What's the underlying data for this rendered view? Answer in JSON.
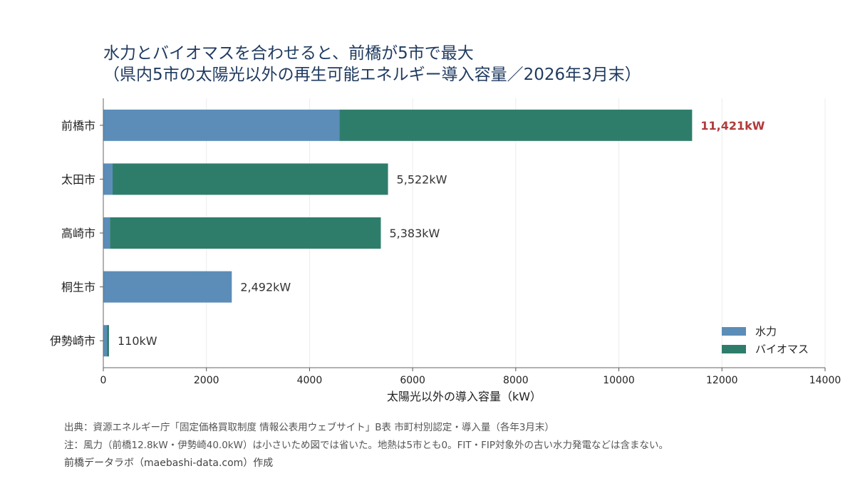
{
  "chart_data": {
    "type": "bar",
    "orientation": "horizontal",
    "stacked": true,
    "title": "水力とバイオマスを合わせると、前橋が5市で最大",
    "subtitle": "（県内5市の太陽光以外の再生可能エネルギー導入容量／2026年3月末）",
    "categories": [
      "前橋市",
      "太田市",
      "高崎市",
      "桐生市",
      "伊勢崎市"
    ],
    "series": [
      {
        "name": "水力",
        "color": "#5b8db8",
        "values": [
          4580,
          180,
          130,
          2492,
          70
        ]
      },
      {
        "name": "バイオマス",
        "color": "#2e7d6b",
        "values": [
          6841,
          5342,
          5253,
          0,
          40
        ]
      }
    ],
    "total_labels": [
      "11,421kW",
      "5,522kW",
      "5,383kW",
      "2,492kW",
      "110kW"
    ],
    "label_positions": [
      11421,
      5522,
      5383,
      2492,
      110
    ],
    "highlight_index": 0,
    "highlight_color": "#b03a3a",
    "xlabel": "太陽光以外の導入容量（kW）",
    "xlim": [
      0,
      14000
    ],
    "xticks": [
      0,
      2000,
      4000,
      6000,
      8000,
      10000,
      12000,
      14000
    ],
    "xtick_labels": [
      "0",
      "2000",
      "4000",
      "6000",
      "8000",
      "10000",
      "12000",
      "14000"
    ],
    "grid": "x",
    "legend_placement": "bottom-right"
  },
  "footnotes": {
    "source": "出典：資源エネルギー庁「固定価格買取制度 情報公表用ウェブサイト」B表 市町村別認定・導入量（各年3月末）",
    "note": "注：風力（前橋12.8kW・伊勢崎40.0kW）は小さいため図では省いた。地熱は5市とも0。FIT・FIP対象外の古い水力発電などは含まない。",
    "credit": "前橋データラボ（maebashi-data.com）作成"
  }
}
